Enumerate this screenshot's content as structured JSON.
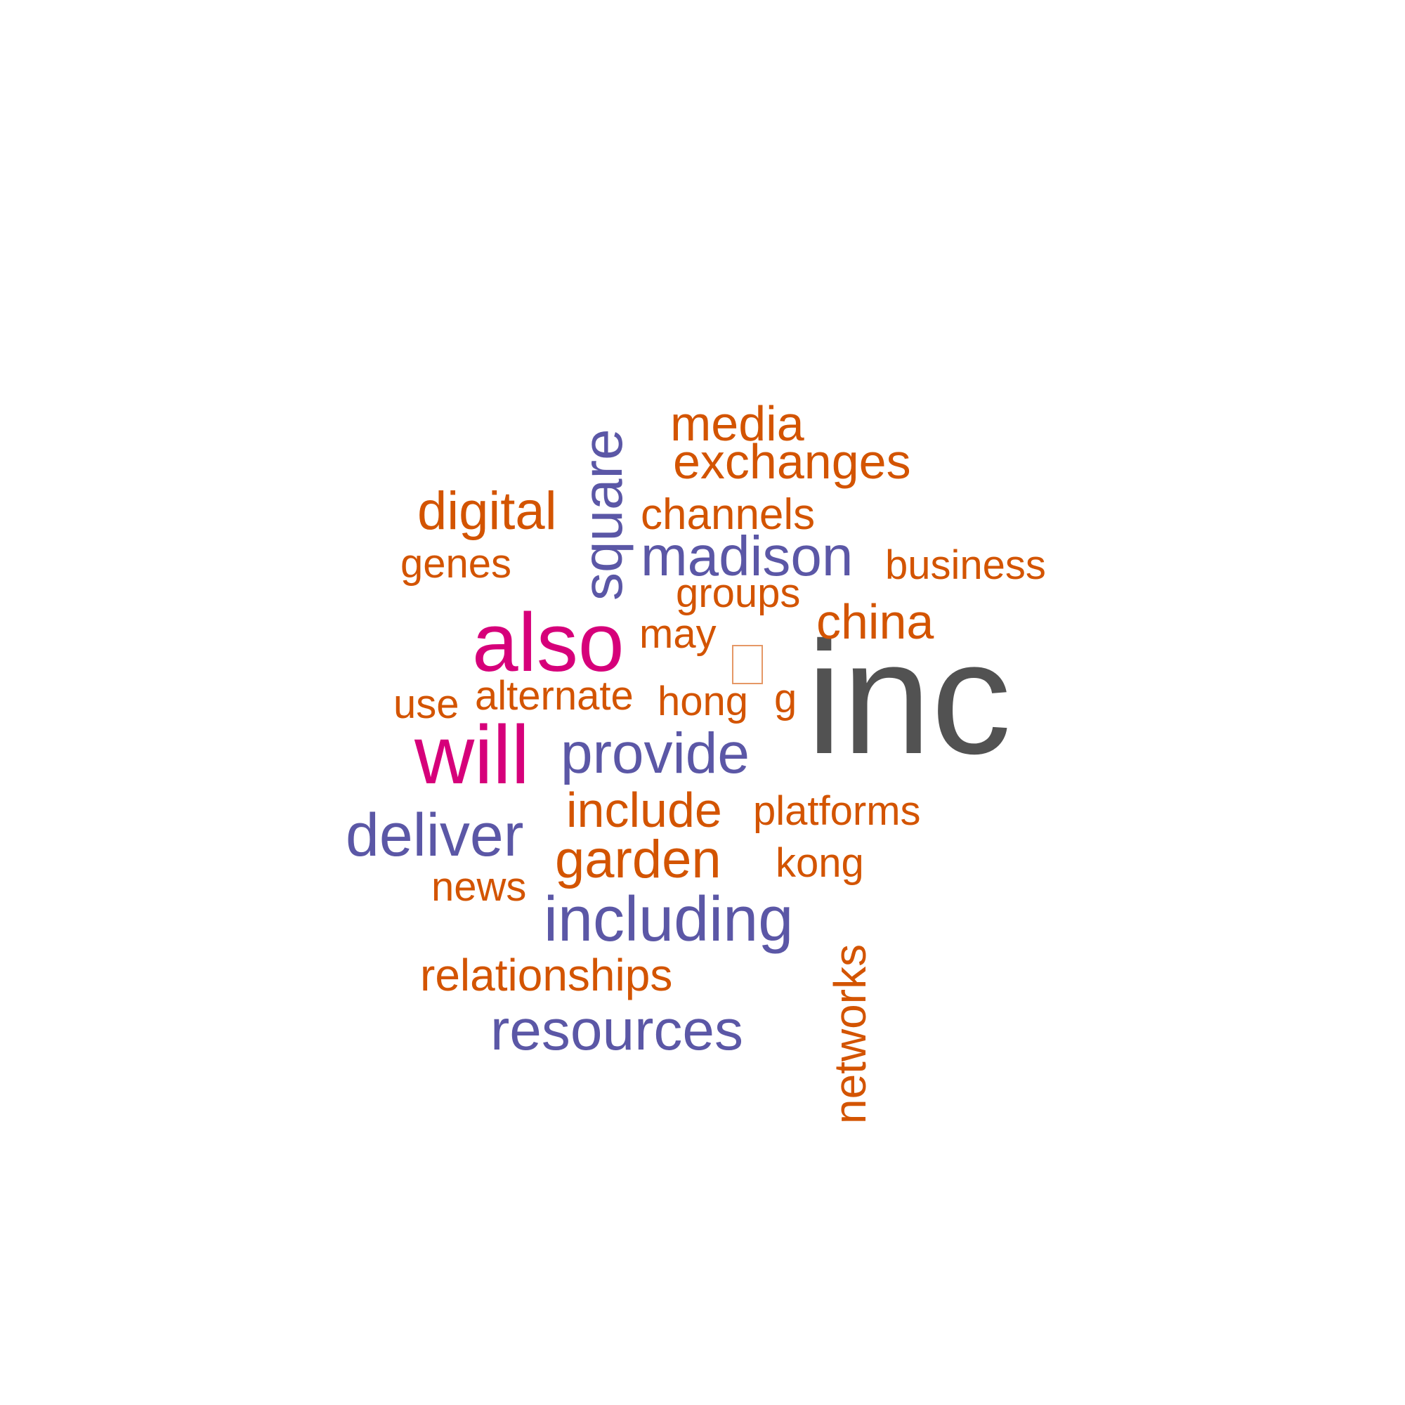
{
  "words": {
    "inc": "inc",
    "also": "also",
    "will": "will",
    "square": "square",
    "media": "media",
    "exchanges": "exchanges",
    "digital": "digital",
    "channels": "channels",
    "genes": "genes",
    "madison": "madison",
    "business": "business",
    "groups": "groups",
    "china": "china",
    "may": "may",
    "use": "use",
    "alternate": "alternate",
    "hong": "hong",
    "g": "g",
    "provide": "provide",
    "include": "include",
    "platforms": "platforms",
    "deliver": "deliver",
    "garden": "garden",
    "kong": "kong",
    "news": "news",
    "including": "including",
    "networks": "networks",
    "relationships": "relationships",
    "resources": "resources"
  },
  "colors": {
    "orange": "#d35400",
    "purple": "#5b57a6",
    "magenta": "#d6007a",
    "gray": "#525252",
    "background": "#ffffff"
  }
}
